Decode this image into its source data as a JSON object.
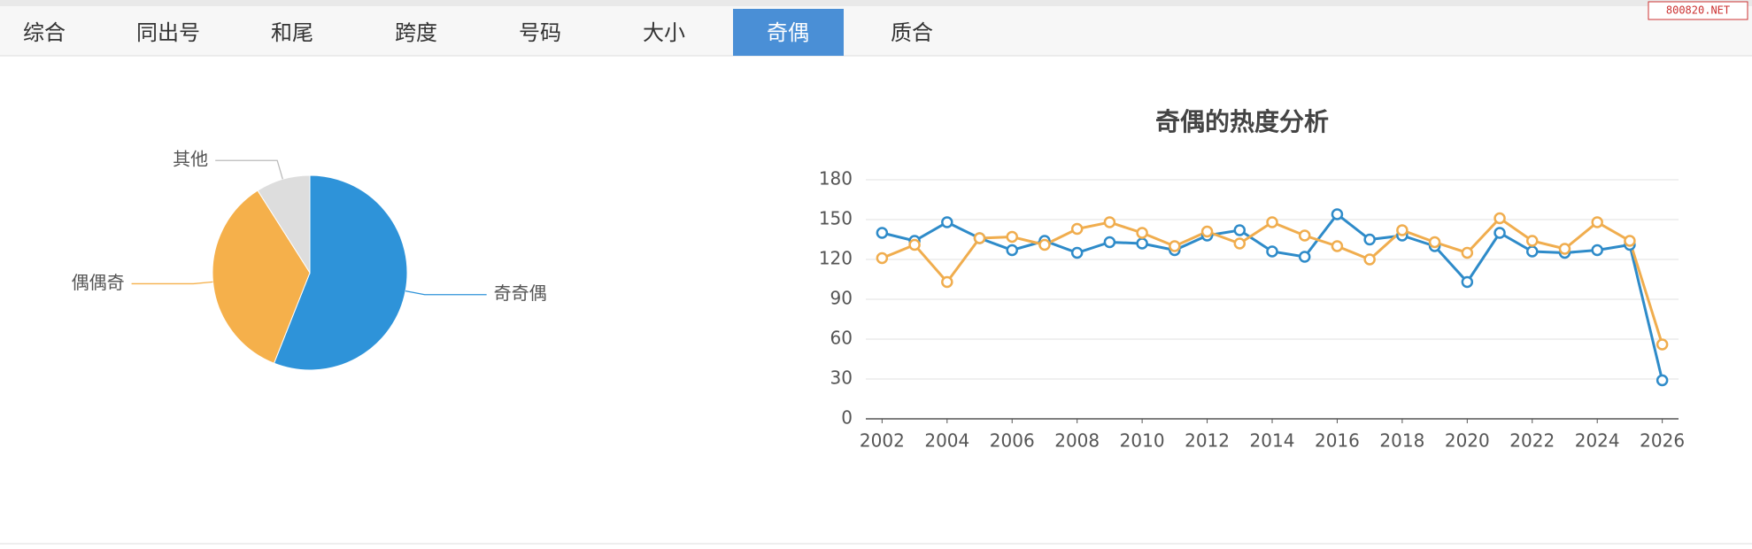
{
  "tabs": [
    "综合",
    "同出号",
    "和尾",
    "跨度",
    "号码",
    "大小",
    "奇偶",
    "质合"
  ],
  "active_tab": 6,
  "watermark": "800820.NET",
  "chart_data": [
    {
      "type": "pie",
      "categories": [
        "奇奇偶",
        "偶偶奇",
        "其他"
      ],
      "values": [
        56,
        35,
        9
      ],
      "colors": [
        "#2e93d9",
        "#f5b04b",
        "#dddddd"
      ]
    },
    {
      "type": "line",
      "title": "奇偶的热度分析",
      "x": [
        2002,
        2003,
        2004,
        2005,
        2006,
        2007,
        2008,
        2009,
        2010,
        2011,
        2012,
        2013,
        2014,
        2015,
        2016,
        2017,
        2018,
        2019,
        2020,
        2021,
        2022,
        2023,
        2024,
        2025,
        2026
      ],
      "series": [
        {
          "color": "#2e8bc9",
          "values": [
            140,
            134,
            148,
            136,
            127,
            134,
            125,
            133,
            132,
            127,
            138,
            142,
            126,
            122,
            154,
            135,
            138,
            130,
            103,
            140,
            126,
            125,
            127,
            131,
            29
          ]
        },
        {
          "color": "#f0ad4e",
          "values": [
            121,
            131,
            103,
            136,
            137,
            131,
            143,
            148,
            140,
            130,
            141,
            132,
            148,
            138,
            130,
            120,
            142,
            133,
            125,
            151,
            134,
            128,
            148,
            134,
            56
          ]
        }
      ],
      "xlim": [
        2001.5,
        2026.5
      ],
      "xticks": [
        2002,
        2004,
        2006,
        2008,
        2010,
        2012,
        2014,
        2016,
        2018,
        2020,
        2022,
        2024,
        2026
      ],
      "ylim": [
        0,
        180
      ],
      "yticks": [
        0,
        30,
        60,
        90,
        120,
        150,
        180
      ],
      "grid": true
    }
  ]
}
